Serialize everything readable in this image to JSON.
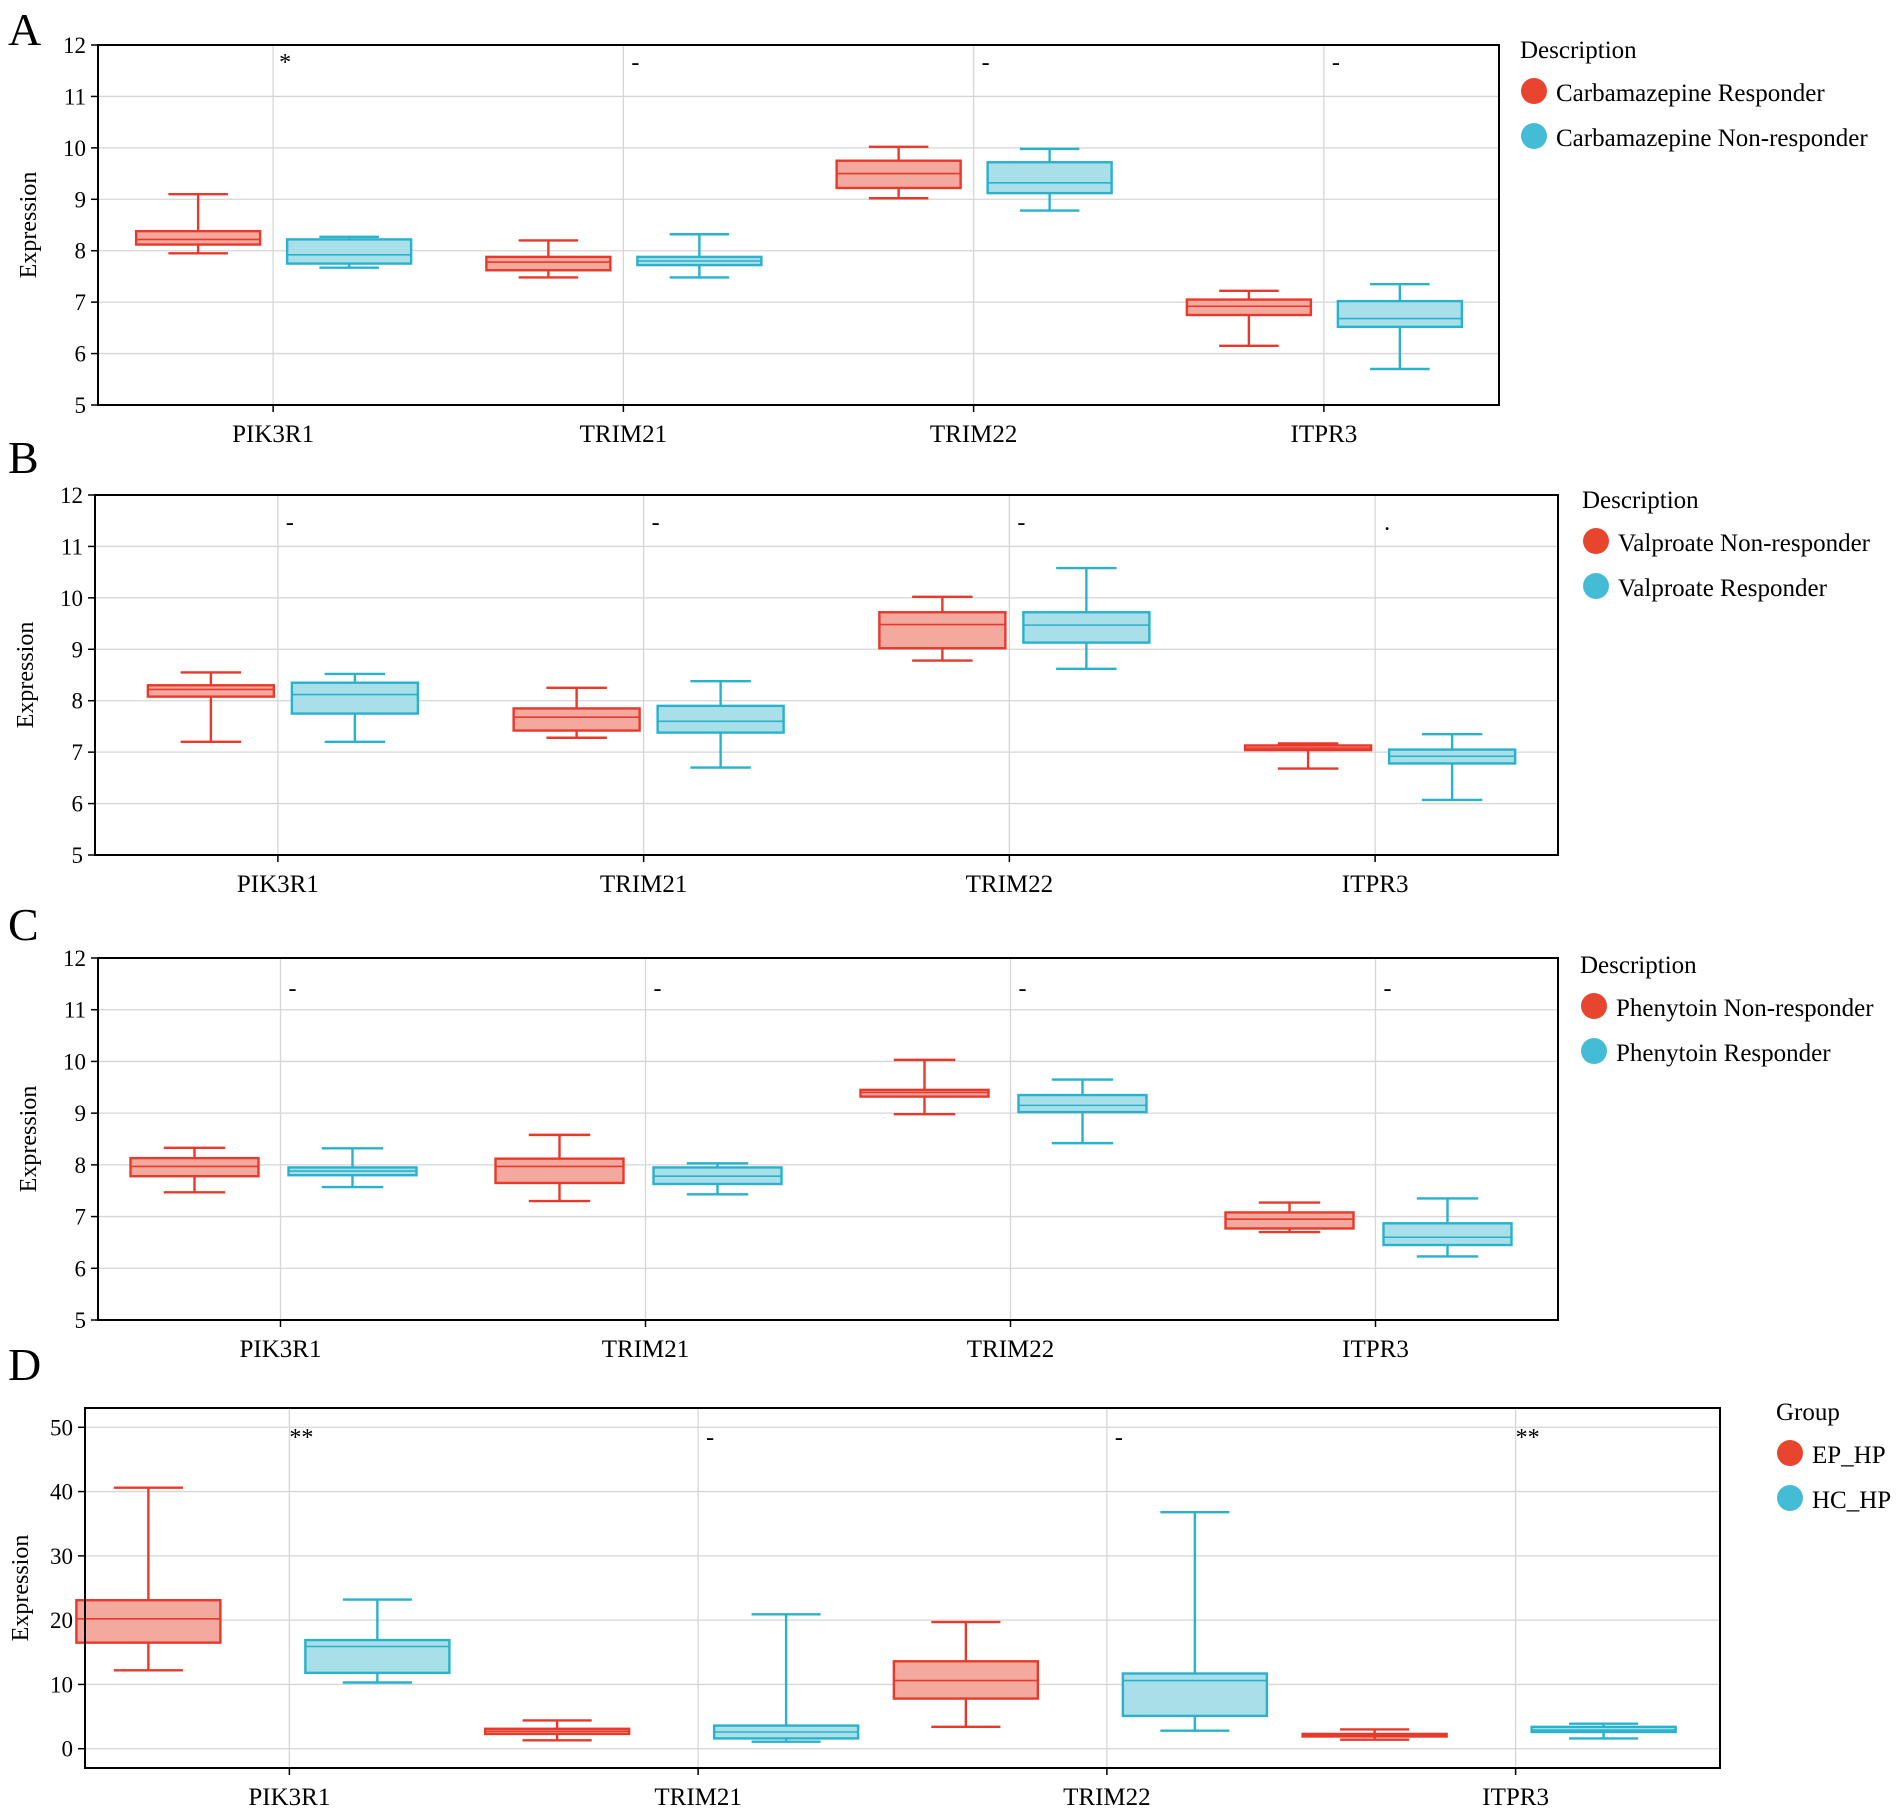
{
  "colors": {
    "group1_fill": "#f4a99f",
    "group1_stroke": "#e8392b",
    "group1_marker": "#e8452f",
    "group2_fill": "#a9dfe9",
    "group2_stroke": "#28b2cc",
    "group2_marker": "#45bcd6",
    "grid": "#d6d6d6",
    "frame": "#000000"
  },
  "chart_data": [
    {
      "panel": "A",
      "type": "box",
      "ylabel": "Expression",
      "ylim": [
        5,
        12
      ],
      "yticks": [
        5,
        6,
        7,
        8,
        9,
        10,
        11,
        12
      ],
      "categories": [
        "PIK3R1",
        "TRIM21",
        "TRIM22",
        "ITPR3"
      ],
      "significance": [
        "*",
        "-",
        "-",
        "-"
      ],
      "legend": {
        "title": "Description",
        "entries": [
          "Carbamazepine Responder",
          "Carbamazepine Non-responder"
        ]
      },
      "series": [
        {
          "name": "Carbamazepine Responder",
          "boxes": [
            {
              "min": 7.95,
              "q1": 8.12,
              "median": 8.22,
              "q3": 8.38,
              "max": 9.1
            },
            {
              "min": 7.48,
              "q1": 7.62,
              "median": 7.78,
              "q3": 7.88,
              "max": 8.2
            },
            {
              "min": 9.02,
              "q1": 9.22,
              "median": 9.5,
              "q3": 9.75,
              "max": 10.02
            },
            {
              "min": 6.15,
              "q1": 6.75,
              "median": 6.92,
              "q3": 7.05,
              "max": 7.22
            }
          ]
        },
        {
          "name": "Carbamazepine Non-responder",
          "boxes": [
            {
              "min": 7.67,
              "q1": 7.75,
              "median": 7.92,
              "q3": 8.22,
              "max": 8.27
            },
            {
              "min": 7.48,
              "q1": 7.72,
              "median": 7.8,
              "q3": 7.88,
              "max": 8.32
            },
            {
              "min": 8.78,
              "q1": 9.12,
              "median": 9.32,
              "q3": 9.72,
              "max": 9.98
            },
            {
              "min": 5.7,
              "q1": 6.52,
              "median": 6.68,
              "q3": 7.02,
              "max": 7.35
            }
          ]
        }
      ]
    },
    {
      "panel": "B",
      "type": "box",
      "ylabel": "Expression",
      "ylim": [
        5,
        12
      ],
      "yticks": [
        5,
        6,
        7,
        8,
        9,
        10,
        11,
        12
      ],
      "categories": [
        "PIK3R1",
        "TRIM21",
        "TRIM22",
        "ITPR3"
      ],
      "significance": [
        "-",
        "-",
        "-",
        "."
      ],
      "legend": {
        "title": "Description",
        "entries": [
          "Valproate Non-responder",
          "Valproate Responder"
        ]
      },
      "series": [
        {
          "name": "Valproate Non-responder",
          "boxes": [
            {
              "min": 7.2,
              "q1": 8.08,
              "median": 8.22,
              "q3": 8.3,
              "max": 8.55
            },
            {
              "min": 7.28,
              "q1": 7.42,
              "median": 7.68,
              "q3": 7.85,
              "max": 8.25
            },
            {
              "min": 8.78,
              "q1": 9.02,
              "median": 9.48,
              "q3": 9.72,
              "max": 10.02
            },
            {
              "min": 6.68,
              "q1": 7.04,
              "median": 7.08,
              "q3": 7.13,
              "max": 7.17
            }
          ]
        },
        {
          "name": "Valproate Responder",
          "boxes": [
            {
              "min": 7.2,
              "q1": 7.75,
              "median": 8.12,
              "q3": 8.35,
              "max": 8.52
            },
            {
              "min": 6.7,
              "q1": 7.38,
              "median": 7.6,
              "q3": 7.9,
              "max": 8.38
            },
            {
              "min": 8.62,
              "q1": 9.13,
              "median": 9.47,
              "q3": 9.72,
              "max": 10.58
            },
            {
              "min": 6.07,
              "q1": 6.78,
              "median": 6.92,
              "q3": 7.05,
              "max": 7.35
            }
          ]
        }
      ]
    },
    {
      "panel": "C",
      "type": "box",
      "ylabel": "Expression",
      "ylim": [
        5,
        12
      ],
      "yticks": [
        5,
        6,
        7,
        8,
        9,
        10,
        11,
        12
      ],
      "categories": [
        "PIK3R1",
        "TRIM21",
        "TRIM22",
        "ITPR3"
      ],
      "significance": [
        "-",
        "-",
        "-",
        "-"
      ],
      "legend": {
        "title": "Description",
        "entries": [
          "Phenytoin Non-responder",
          "Phenytoin Responder"
        ]
      },
      "series": [
        {
          "name": "Phenytoin Non-responder",
          "boxes": [
            {
              "min": 7.47,
              "q1": 7.78,
              "median": 7.97,
              "q3": 8.13,
              "max": 8.33
            },
            {
              "min": 7.3,
              "q1": 7.65,
              "median": 7.97,
              "q3": 8.12,
              "max": 8.58
            },
            {
              "min": 8.98,
              "q1": 9.32,
              "median": 9.4,
              "q3": 9.45,
              "max": 10.03
            },
            {
              "min": 6.7,
              "q1": 6.77,
              "median": 6.95,
              "q3": 7.08,
              "max": 7.27
            }
          ]
        },
        {
          "name": "Phenytoin Responder",
          "boxes": [
            {
              "min": 7.57,
              "q1": 7.8,
              "median": 7.88,
              "q3": 7.95,
              "max": 8.32
            },
            {
              "min": 7.43,
              "q1": 7.63,
              "median": 7.78,
              "q3": 7.95,
              "max": 8.03
            },
            {
              "min": 8.42,
              "q1": 9.02,
              "median": 9.15,
              "q3": 9.35,
              "max": 9.65
            },
            {
              "min": 6.23,
              "q1": 6.45,
              "median": 6.6,
              "q3": 6.87,
              "max": 7.35
            }
          ]
        }
      ]
    },
    {
      "panel": "D",
      "type": "box",
      "ylabel": "Expression",
      "ylim": [
        -3,
        53
      ],
      "yticks": [
        0,
        10,
        20,
        30,
        40,
        50
      ],
      "categories": [
        "PIK3R1",
        "TRIM21",
        "TRIM22",
        "ITPR3"
      ],
      "significance": [
        "**",
        "-",
        "-",
        "**"
      ],
      "legend": {
        "title": "Group",
        "entries": [
          "EP_HP",
          "HC_HP"
        ]
      },
      "series": [
        {
          "name": "EP_HP",
          "boxes": [
            {
              "min": 12.2,
              "q1": 16.5,
              "median": 20.2,
              "q3": 23.1,
              "max": 40.6
            },
            {
              "min": 1.3,
              "q1": 2.3,
              "median": 2.7,
              "q3": 3.1,
              "max": 4.4
            },
            {
              "min": 3.4,
              "q1": 7.8,
              "median": 10.6,
              "q3": 13.6,
              "max": 19.7
            },
            {
              "min": 1.4,
              "q1": 1.9,
              "median": 2.1,
              "q3": 2.3,
              "max": 3.0
            }
          ]
        },
        {
          "name": "HC_HP",
          "boxes": [
            {
              "min": 10.3,
              "q1": 11.8,
              "median": 15.9,
              "q3": 16.9,
              "max": 23.2
            },
            {
              "min": 1.1,
              "q1": 1.6,
              "median": 2.6,
              "q3": 3.6,
              "max": 20.9
            },
            {
              "min": 2.8,
              "q1": 5.1,
              "median": 10.6,
              "q3": 11.7,
              "max": 36.8
            },
            {
              "min": 1.6,
              "q1": 2.6,
              "median": 2.9,
              "q3": 3.4,
              "max": 3.9
            }
          ]
        }
      ]
    }
  ]
}
